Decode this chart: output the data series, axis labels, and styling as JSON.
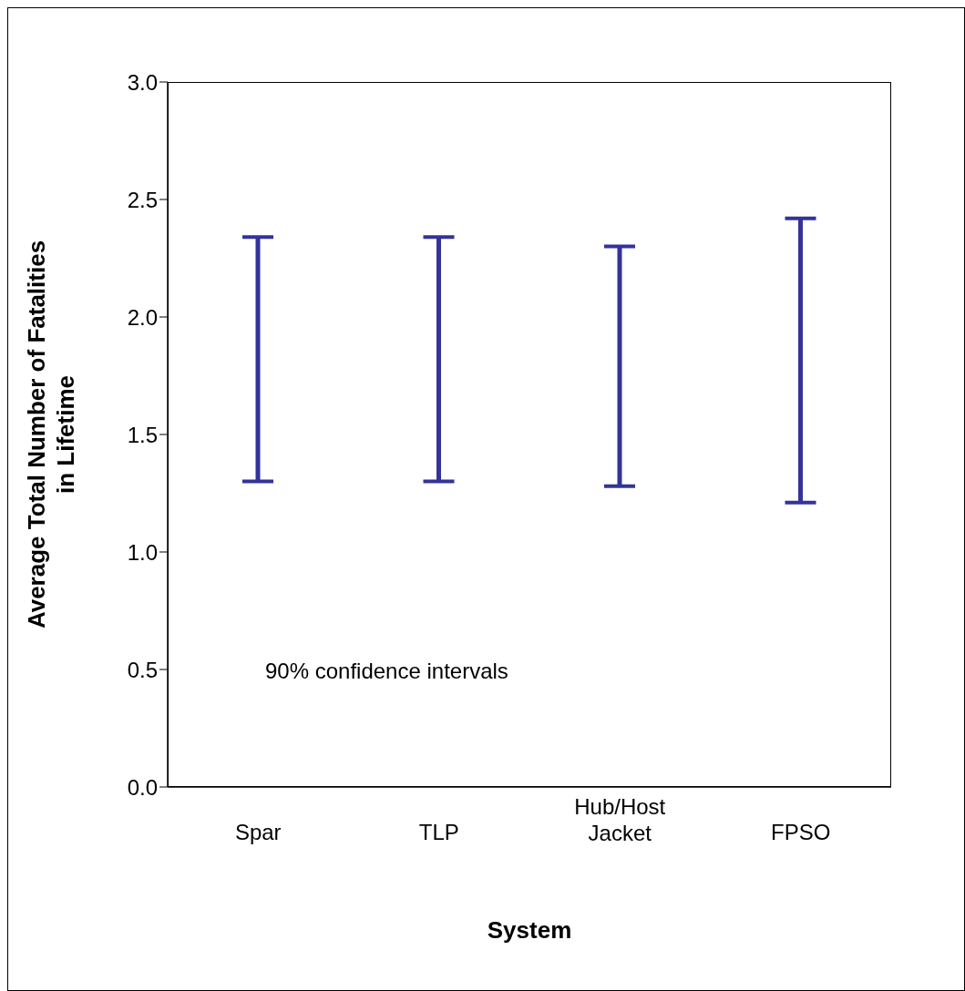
{
  "chart_data": {
    "type": "bar",
    "xlabel": "System",
    "ylabel": "Average Total Number of Fatalities in Lifetime",
    "categories": [
      "Spar",
      "TLP",
      "Hub/Host Jacket",
      "FPSO"
    ],
    "base": [
      1.3,
      1.3,
      1.28,
      1.21
    ],
    "values": [
      1.04,
      1.04,
      1.02,
      1.21
    ],
    "color": "#333399",
    "ylim": [
      0,
      3
    ],
    "yticks": [
      {
        "value": 0,
        "label": "0.0"
      },
      {
        "value": 0.5,
        "label": "0.5"
      },
      {
        "value": 1,
        "label": "1.0"
      },
      {
        "value": 1.5,
        "label": "1.5"
      },
      {
        "value": 2,
        "label": "2.0"
      },
      {
        "value": 2.5,
        "label": "2.5"
      },
      {
        "value": 3,
        "label": "3.0"
      }
    ],
    "grid": false,
    "legend": false,
    "annotations": [
      "90% confidence intervals"
    ]
  }
}
